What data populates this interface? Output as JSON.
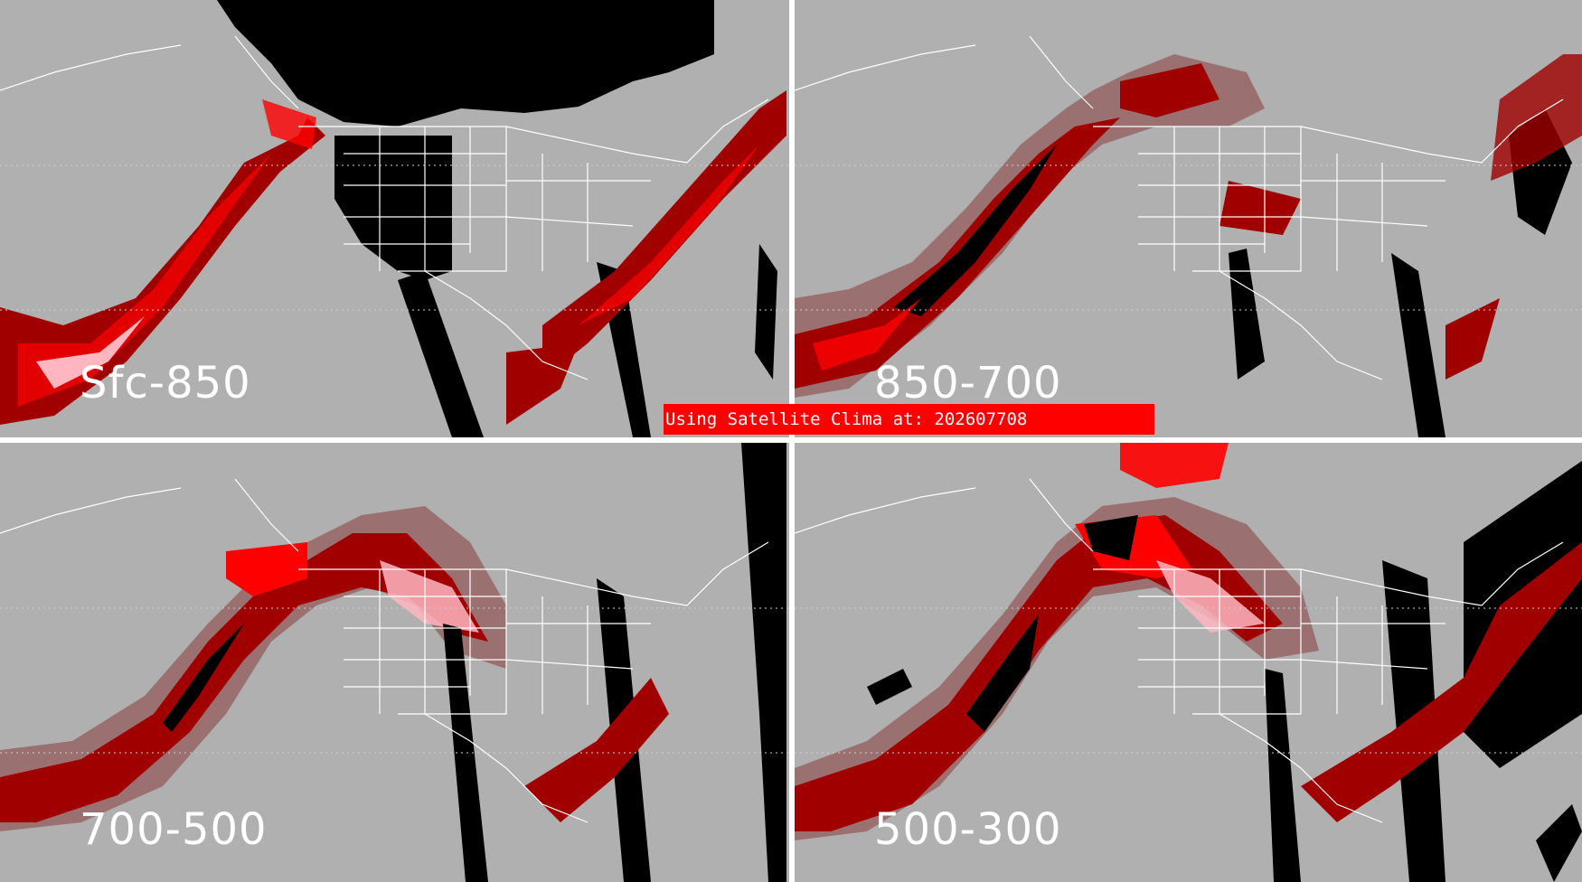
{
  "panels": [
    {
      "id": "sfc-850",
      "label": "Sfc-850"
    },
    {
      "id": "850-700",
      "label": "850-700"
    },
    {
      "id": "700-500",
      "label": "700-500"
    },
    {
      "id": "500-300",
      "label": "500-300"
    }
  ],
  "banner": {
    "text": "Using Satellite Clima at: 202607708"
  },
  "colors": {
    "background_gray": "#b0b0b0",
    "no_data_black": "#000000",
    "dark_red": "#a00000",
    "bright_red": "#ff0000",
    "pink": "#ffb6c1",
    "muted_rose": "#9a7070",
    "boundary_white": "#ffffff",
    "divider_white": "#ffffff"
  }
}
